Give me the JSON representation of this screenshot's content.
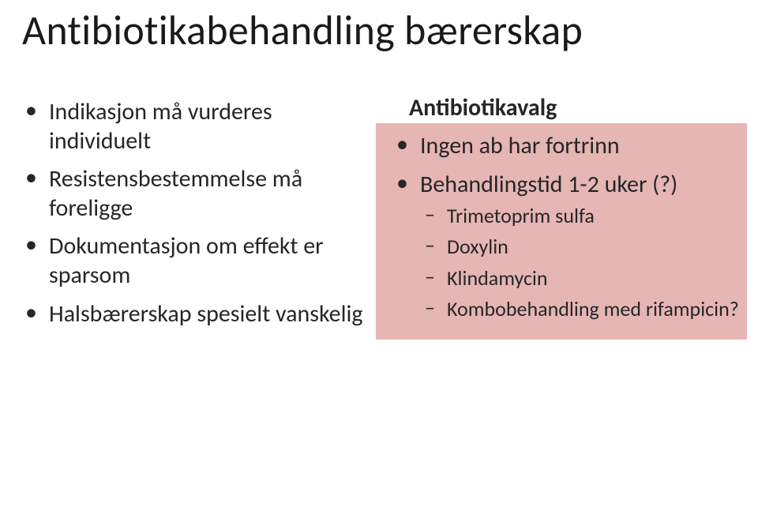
{
  "title": "Antibiotikabehandling bærerskap",
  "left": {
    "items": [
      "Indikasjon må vurderes individuelt",
      "Resistensbestemmelse må foreligge",
      "Dokumentasjon om effekt er sparsom",
      "Halsbærerskap spesielt vanskelig"
    ]
  },
  "right": {
    "heading": "Antibiotikavalg",
    "items": [
      {
        "text": "Ingen ab har fortrinn"
      },
      {
        "text": "Behandlingstid 1-2 uker (?)",
        "sub": [
          "Trimetoprim sulfa",
          "Doxylin",
          "Klindamycin",
          "Kombobehandling med rifampicin?"
        ]
      }
    ]
  },
  "colors": {
    "text": "#262626",
    "highlight": "#c0504d",
    "background": "#ffffff"
  }
}
